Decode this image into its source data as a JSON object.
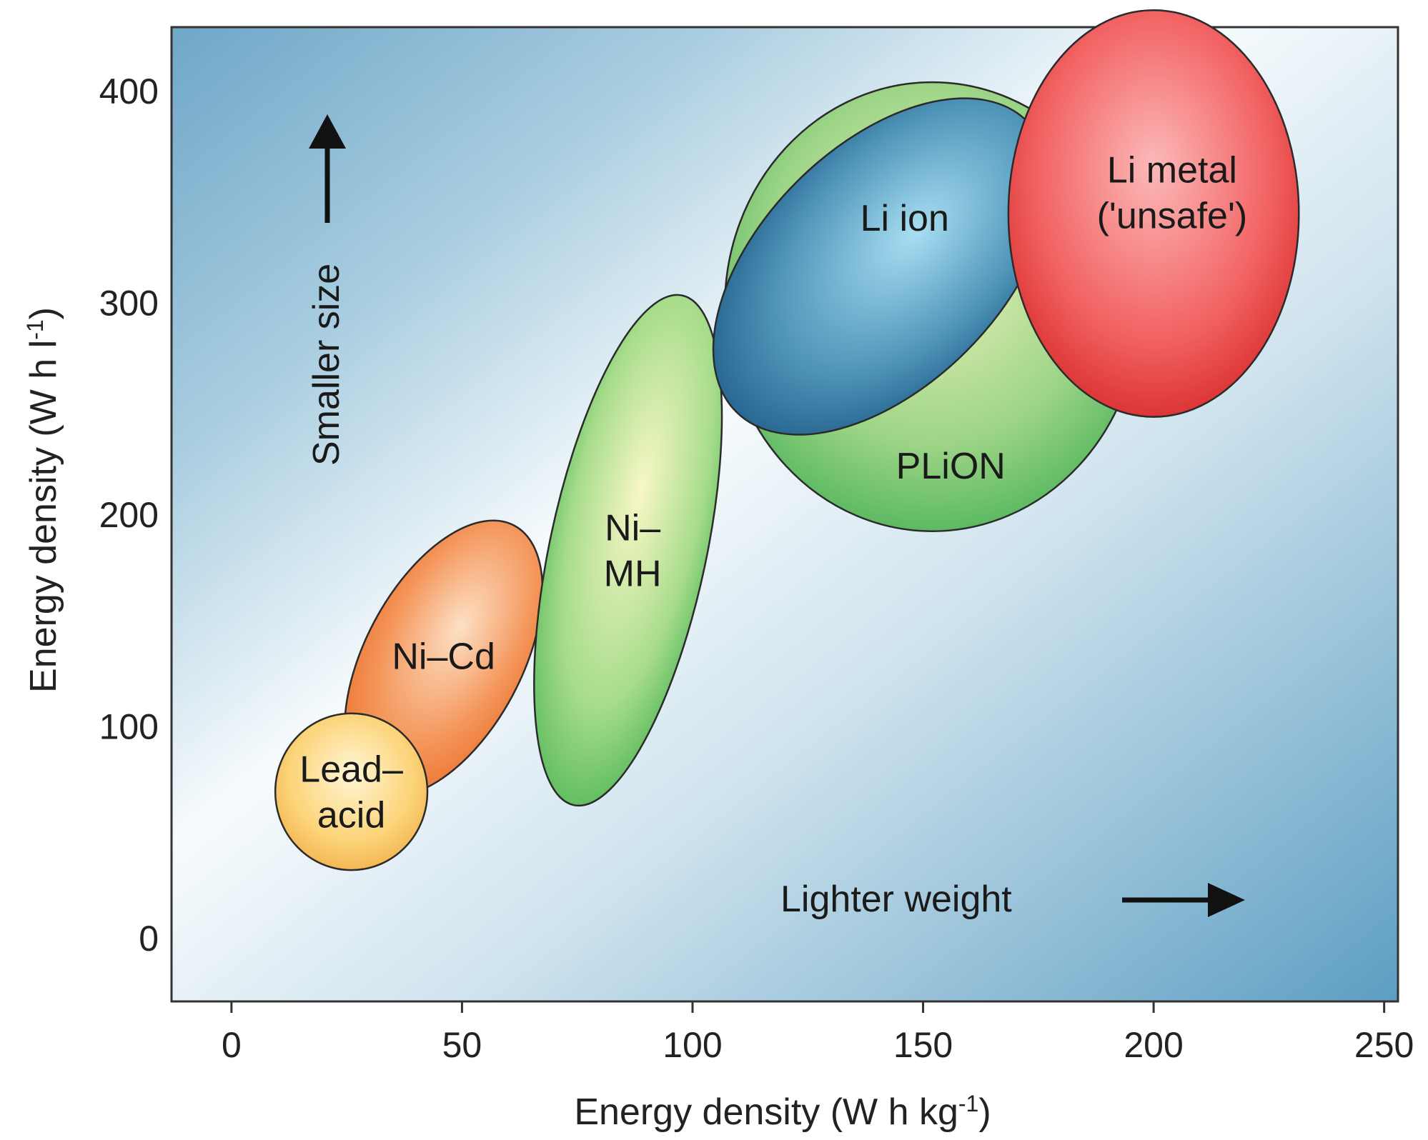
{
  "chart_data": {
    "type": "scatter",
    "title": "",
    "xlabel": "Energy density (W h kg",
    "xlabel_sup": "-1",
    "xlabel_end": ")",
    "ylabel": "Energy density (W h l",
    "ylabel_sup": "-1",
    "ylabel_end": ")",
    "xlim": [
      -13,
      253
    ],
    "ylim": [
      -30,
      430
    ],
    "x_ticks": [
      0,
      50,
      100,
      150,
      200,
      250
    ],
    "y_ticks": [
      0,
      100,
      200,
      300,
      400
    ],
    "grid": false,
    "regions": [
      {
        "name": "Ni–Cd",
        "lines": [
          "Ni–Cd"
        ],
        "cx": 46,
        "cy": 132,
        "rx": 17,
        "ry": 71,
        "rotate_deg": 28,
        "colors": [
          "#fde0c4",
          "#f4955a",
          "#ec7532"
        ],
        "label_x": 46,
        "label_y": 133
      },
      {
        "name": "Lead–acid",
        "lines": [
          "Lead–",
          "acid"
        ],
        "cx": 26,
        "cy": 69,
        "rx": 16.5,
        "ry": 37,
        "rotate_deg": 0,
        "colors": [
          "#fff6d4",
          "#fcd47a",
          "#f2b24c"
        ],
        "label_x": 26,
        "label_y": 69
      },
      {
        "name": "Ni–MH",
        "lines": [
          "Ni–",
          "MH"
        ],
        "cx": 86,
        "cy": 183,
        "rx": 17,
        "ry": 123,
        "rotate_deg": 12,
        "colors": [
          "#f8f7c6",
          "#a6dc8a",
          "#55b85a"
        ],
        "label_x": 87,
        "label_y": 183
      },
      {
        "name": "PLiON",
        "lines": [
          "PLiON"
        ],
        "cx": 152,
        "cy": 298,
        "rx": 45,
        "ry": 106,
        "rotate_deg": 0,
        "colors": [
          "#f1f5c0",
          "#9cd486",
          "#4fb45a"
        ],
        "label_x": 156,
        "label_y": 223
      },
      {
        "name": "Li ion",
        "lines": [
          "Li ion"
        ],
        "cx": 141,
        "cy": 317,
        "rx": 26,
        "ry": 97,
        "rotate_deg": 45,
        "colors": [
          "#a8def2",
          "#4e93b8",
          "#215f8a"
        ],
        "label_x": 146,
        "label_y": 340
      },
      {
        "name": "Li metal ('unsafe')",
        "lines": [
          "Li metal",
          "('unsafe')"
        ],
        "cx": 200,
        "cy": 342,
        "rx": 31.5,
        "ry": 96,
        "rotate_deg": 0,
        "colors": [
          "#fcb9b9",
          "#f26262",
          "#d82c2c"
        ],
        "label_x": 204,
        "label_y": 352
      }
    ],
    "annotations": {
      "smaller_size": "Smaller size",
      "lighter_weight": "Lighter weight"
    }
  }
}
